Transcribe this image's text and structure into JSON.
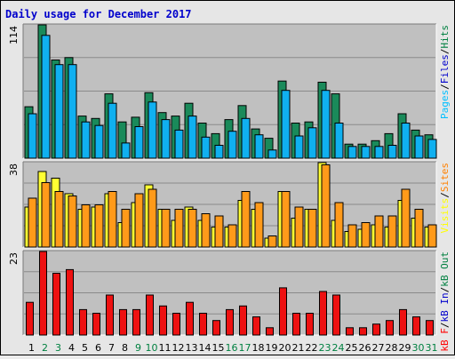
{
  "chart_data": {
    "type": "bar",
    "title": "Daily usage for December 2017",
    "days": [
      "1",
      "2",
      "3",
      "4",
      "5",
      "6",
      "7",
      "8",
      "9",
      "10",
      "11",
      "12",
      "13",
      "14",
      "15",
      "16",
      "17",
      "18",
      "19",
      "20",
      "21",
      "22",
      "23",
      "24",
      "25",
      "26",
      "27",
      "28",
      "29",
      "30",
      "31"
    ],
    "weekend_days": [
      "2",
      "3",
      "9",
      "10",
      "16",
      "17",
      "23",
      "24",
      "30",
      "31"
    ],
    "weekday_color": "#000000",
    "weekend_color": "#008040",
    "panels": [
      {
        "name": "hits-files-pages",
        "ymax_label": "114",
        "ymax": 114,
        "legend": [
          "Pages",
          "/",
          "Files",
          "/",
          "Hits"
        ],
        "legend_colors": [
          "#00bfff",
          "#000000",
          "#0000cc",
          "#000000",
          "#008040"
        ],
        "series": [
          {
            "name": "Hits",
            "color": "#1a8a5a",
            "values": [
              44,
              114,
              84,
              86,
              36,
              34,
              55,
              31,
              35,
              56,
              39,
              36,
              47,
              30,
              21,
              33,
              45,
              25,
              17,
              66,
              30,
              31,
              65,
              55,
              12,
              12,
              15,
              21,
              38,
              24,
              20
            ]
          },
          {
            "name": "Files",
            "color": "#10b0f0",
            "values": [
              38,
              105,
              80,
              80,
              31,
              28,
              47,
              13,
              27,
              48,
              33,
              24,
              36,
              18,
              11,
              23,
              34,
              20,
              7,
              58,
              19,
              26,
              58,
              30,
              10,
              10,
              10,
              11,
              30,
              19,
              16
            ]
          }
        ]
      },
      {
        "name": "sites-visits",
        "ymax_label": "38",
        "ymax": 38,
        "legend": [
          "Visits",
          "/",
          "Sites"
        ],
        "legend_colors": [
          "#ffff00",
          "#000000",
          "#ff8000"
        ],
        "series": [
          {
            "name": "Visits",
            "color": "#ffff33",
            "values": [
              18,
              34,
              31,
              24,
              17,
              18,
              24,
              11,
              20,
              28,
              17,
              12,
              18,
              12,
              9,
              9,
              21,
              17,
              4,
              25,
              13,
              17,
              38,
              12,
              7,
              8,
              10,
              9,
              21,
              13,
              9
            ]
          },
          {
            "name": "Sites",
            "color": "#ff9a1a",
            "values": [
              22,
              29,
              25,
              23,
              19,
              19,
              25,
              17,
              24,
              26,
              17,
              17,
              17,
              15,
              14,
              10,
              25,
              20,
              5,
              25,
              18,
              17,
              37,
              20,
              10,
              11,
              14,
              14,
              26,
              17,
              10
            ]
          }
        ]
      },
      {
        "name": "kbytes",
        "ymax_label": "23",
        "ymax": 23,
        "legend": [
          "kB F",
          "/",
          "kB In",
          "/",
          "kB Out"
        ],
        "legend_colors": [
          "#ff0000",
          "#000000",
          "#0000cc",
          "#000000",
          "#008040"
        ],
        "series": [
          {
            "name": "kB F",
            "color": "#ee1111",
            "values": [
              9,
              23,
              17,
              18,
              7,
              6,
              11,
              7,
              7,
              11,
              8,
              6,
              9,
              6,
              4,
              7,
              8,
              5,
              2,
              13,
              6,
              6,
              12,
              11,
              2,
              2,
              3,
              4,
              7,
              5,
              4
            ]
          }
        ]
      }
    ]
  }
}
